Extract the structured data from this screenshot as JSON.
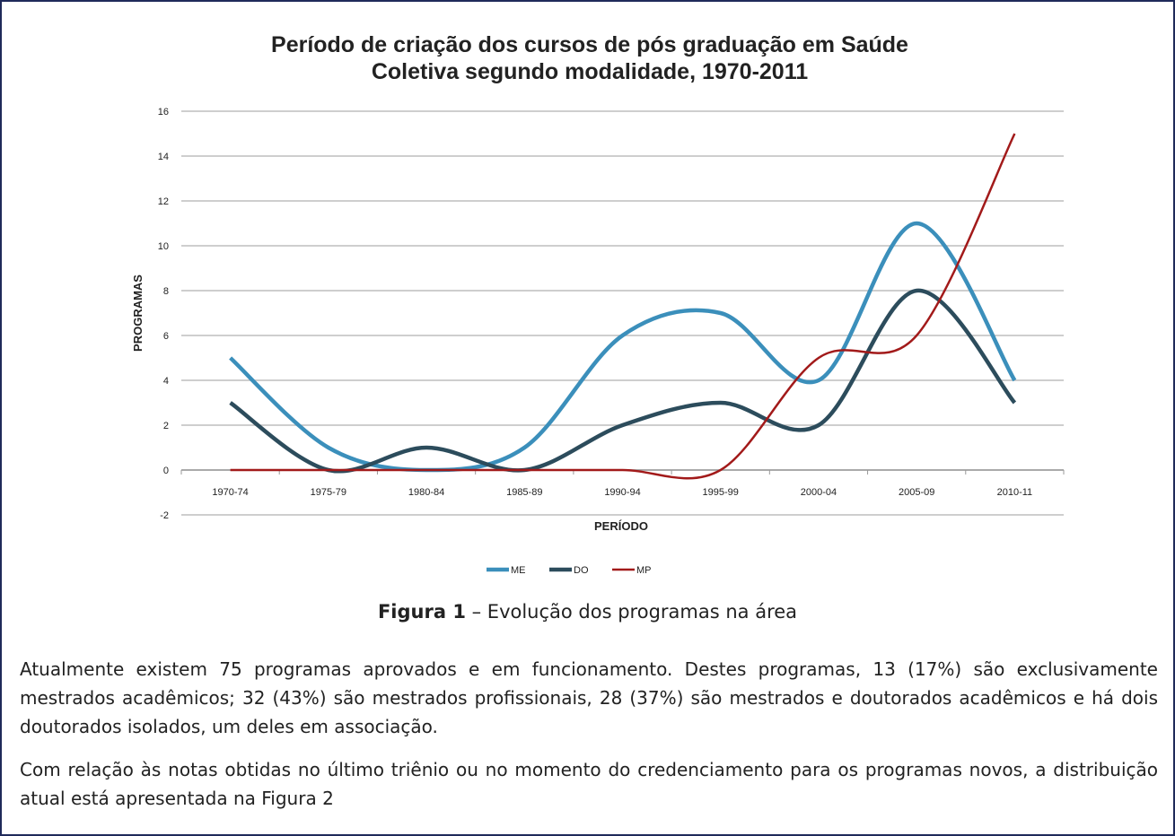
{
  "chart_data": {
    "type": "line",
    "title": [
      "Período de criação dos cursos de pós graduação em Saúde",
      "Coletiva segundo modalidade, 1970-2011"
    ],
    "xlabel": "PERÍODO",
    "ylabel": "PROGRAMAS",
    "categories": [
      "1970-74",
      "1975-79",
      "1980-84",
      "1985-89",
      "1990-94",
      "1995-99",
      "2000-04",
      "2005-09",
      "2010-11"
    ],
    "series": [
      {
        "name": "ME",
        "color": "#3b8fbb",
        "values": [
          5,
          1,
          0,
          1,
          6,
          7,
          4,
          11,
          4
        ]
      },
      {
        "name": "DO",
        "color": "#2c4c5c",
        "values": [
          3,
          0,
          1,
          0,
          2,
          3,
          2,
          8,
          3
        ]
      },
      {
        "name": "MP",
        "color": "#a21a1a",
        "values": [
          0,
          0,
          0,
          0,
          0,
          0,
          5,
          6,
          15
        ]
      }
    ],
    "ylim": [
      -2,
      16
    ],
    "yticks": [
      -2,
      0,
      2,
      4,
      6,
      8,
      10,
      12,
      14,
      16
    ],
    "grid": true,
    "legend": "bottom",
    "smooth": true
  },
  "caption": {
    "label": "Figura 1",
    "text": "– Evolução dos programas na área"
  },
  "paragraphs": [
    "Atualmente existem 75 programas aprovados e em funcionamento. Destes programas, 13 (17%) são exclusivamente mestrados acadêmicos; 32 (43%) são mestrados profissionais, 28 (37%) são mestrados e doutorados acadêmicos e há dois doutorados isolados, um deles em associação.",
    "Com relação às notas obtidas no último triênio ou no momento do credenciamento para os programas novos, a distribuição atual está apresentada na Figura 2"
  ]
}
